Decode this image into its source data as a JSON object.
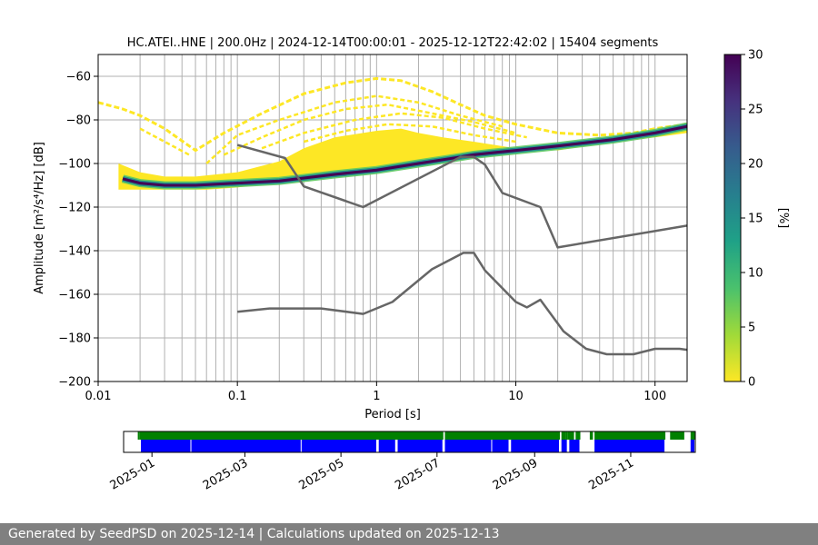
{
  "chart_data": [
    {
      "type": "heatmap",
      "title": "HC.ATEI..HNE | 200.0Hz | 2024-12-14T00:00:01 - 2025-12-12T22:42:02 | 15404 segments",
      "xlabel": "Period [s]",
      "ylabel": "Amplitude [m²/s⁴/Hz] [dB]",
      "xscale": "log",
      "xlim": [
        0.01,
        170
      ],
      "ylim": [
        -200,
        -50
      ],
      "xticks": [
        {
          "value": 0.01,
          "label": "0.01"
        },
        {
          "value": 0.1,
          "label": "0.1"
        },
        {
          "value": 1,
          "label": "1"
        },
        {
          "value": 10,
          "label": "10"
        },
        {
          "value": 100,
          "label": "100"
        }
      ],
      "yticks": [
        {
          "value": -60,
          "label": "−60"
        },
        {
          "value": -80,
          "label": "−80"
        },
        {
          "value": -100,
          "label": "−100"
        },
        {
          "value": -120,
          "label": "−120"
        },
        {
          "value": -140,
          "label": "−140"
        },
        {
          "value": -160,
          "label": "−160"
        },
        {
          "value": -180,
          "label": "−180"
        },
        {
          "value": -200,
          "label": "−200"
        }
      ],
      "grid": true,
      "colorbar": {
        "label": "[%]",
        "range": [
          0,
          30
        ],
        "ticks": [
          {
            "value": 0,
            "label": "0"
          },
          {
            "value": 5,
            "label": "5"
          },
          {
            "value": 10,
            "label": "10"
          },
          {
            "value": 15,
            "label": "15"
          },
          {
            "value": 20,
            "label": "20"
          },
          {
            "value": 25,
            "label": "25"
          },
          {
            "value": 30,
            "label": "30"
          }
        ],
        "colors": [
          "#fde725",
          "#a0da39",
          "#4ac16d",
          "#1fa187",
          "#277f8e",
          "#365c8d",
          "#46327e",
          "#440154"
        ]
      },
      "mode_curve": {
        "period": [
          0.015,
          0.02,
          0.03,
          0.05,
          0.1,
          0.2,
          0.5,
          1,
          2,
          4,
          5,
          7,
          10,
          20,
          50,
          100,
          170
        ],
        "db": [
          -107,
          -109,
          -110,
          -110,
          -109,
          -108,
          -105,
          -103,
          -100,
          -97,
          -96,
          -95,
          -94,
          -92,
          -89,
          -86,
          -83
        ]
      },
      "distribution": {
        "core_lower": [
          [
            0.014,
            -112
          ],
          [
            0.03,
            -112
          ],
          [
            0.06,
            -112
          ],
          [
            0.1,
            -111
          ],
          [
            0.3,
            -107
          ],
          [
            1,
            -103
          ],
          [
            3,
            -99
          ],
          [
            6,
            -96
          ],
          [
            10,
            -94
          ],
          [
            30,
            -91
          ],
          [
            100,
            -86
          ],
          [
            170,
            -84
          ]
        ],
        "core_upper": [
          [
            0.014,
            -100
          ],
          [
            0.02,
            -104
          ],
          [
            0.03,
            -106
          ],
          [
            0.05,
            -106
          ],
          [
            0.1,
            -104
          ],
          [
            0.2,
            -99
          ],
          [
            0.3,
            -93
          ],
          [
            0.5,
            -88
          ],
          [
            1,
            -85
          ],
          [
            1.5,
            -84
          ],
          [
            2,
            -86
          ],
          [
            3,
            -88
          ],
          [
            5,
            -90
          ],
          [
            10,
            -93
          ],
          [
            20,
            -94
          ],
          [
            50,
            -90
          ],
          [
            100,
            -88
          ],
          [
            170,
            -86
          ]
        ],
        "outer_upper": [
          [
            0.01,
            -72
          ],
          [
            0.015,
            -75
          ],
          [
            0.02,
            -78
          ],
          [
            0.03,
            -84
          ],
          [
            0.05,
            -94
          ],
          [
            0.08,
            -86
          ],
          [
            0.15,
            -77
          ],
          [
            0.3,
            -68
          ],
          [
            0.6,
            -63
          ],
          [
            1,
            -61
          ],
          [
            1.5,
            -62
          ],
          [
            2.5,
            -67
          ],
          [
            4,
            -73
          ],
          [
            6,
            -78
          ],
          [
            10,
            -82
          ],
          [
            20,
            -86
          ],
          [
            40,
            -87
          ],
          [
            70,
            -86
          ],
          [
            100,
            -84
          ],
          [
            170,
            -82
          ]
        ],
        "sparse_lines": [
          [
            [
              0.06,
              -100
            ],
            [
              0.1,
              -87
            ],
            [
              0.2,
              -80
            ],
            [
              0.5,
              -72
            ],
            [
              1,
              -69
            ],
            [
              2,
              -72
            ],
            [
              4,
              -78
            ],
            [
              8,
              -83
            ]
          ],
          [
            [
              0.08,
              -96
            ],
            [
              0.15,
              -88
            ],
            [
              0.3,
              -80
            ],
            [
              0.6,
              -75
            ],
            [
              1.2,
              -73
            ],
            [
              2.5,
              -77
            ],
            [
              5,
              -81
            ],
            [
              10,
              -86
            ]
          ],
          [
            [
              0.15,
              -93
            ],
            [
              0.3,
              -86
            ],
            [
              0.7,
              -80
            ],
            [
              1.5,
              -77
            ],
            [
              3,
              -79
            ],
            [
              6,
              -84
            ],
            [
              12,
              -88
            ]
          ],
          [
            [
              0.3,
              -90
            ],
            [
              0.6,
              -85
            ],
            [
              1.2,
              -82
            ],
            [
              2.5,
              -83
            ],
            [
              5,
              -87
            ],
            [
              10,
              -90
            ]
          ],
          [
            [
              0.02,
              -84
            ],
            [
              0.03,
              -90
            ],
            [
              0.045,
              -96
            ]
          ]
        ]
      },
      "reference_lines": [
        {
          "name": "upper",
          "period": [
            0.1,
            0.22,
            0.3,
            0.8,
            4,
            5,
            6,
            8,
            15,
            20,
            170
          ],
          "db": [
            -91.5,
            -97.5,
            -110.5,
            -120,
            -97,
            -97,
            -100.5,
            -113.5,
            -120,
            -138.5,
            -128.5
          ]
        },
        {
          "name": "lower",
          "period": [
            0.1,
            0.17,
            0.4,
            0.8,
            1.3,
            2.5,
            4.2,
            5,
            6,
            10,
            12,
            15,
            22,
            32,
            45,
            70,
            100,
            150,
            170
          ],
          "db": [
            -168,
            -166.5,
            -166.5,
            -169,
            -163.5,
            -148.5,
            -141,
            -141,
            -149,
            -163.5,
            -166,
            -162.5,
            -177,
            -185,
            -187.5,
            -187.5,
            -185,
            -185,
            -185.5
          ]
        }
      ]
    },
    {
      "type": "timeline",
      "x_range": [
        "2024-12-14",
        "2025-12-12"
      ],
      "ticks": [
        {
          "value": "2025-01-01",
          "label": "2025-01"
        },
        {
          "value": "2025-03-01",
          "label": "2025-03"
        },
        {
          "value": "2025-05-01",
          "label": "2025-05"
        },
        {
          "value": "2025-07-01",
          "label": "2025-07"
        },
        {
          "value": "2025-09-01",
          "label": "2025-09"
        },
        {
          "value": "2025-11-01",
          "label": "2025-11"
        }
      ],
      "data_color": "#0000ff",
      "coverage_color": "#008000",
      "coverage_intervals": [
        [
          "2024-12-23",
          "2024-12-24"
        ],
        [
          "2024-12-24",
          "2025-07-05"
        ],
        [
          "2025-07-06",
          "2025-09-17"
        ],
        [
          "2025-09-18",
          "2025-09-21"
        ],
        [
          "2025-09-21",
          "2025-09-22"
        ],
        [
          "2025-09-22",
          "2025-09-26"
        ],
        [
          "2025-09-27",
          "2025-09-30"
        ],
        [
          "2025-10-06",
          "2025-10-08"
        ],
        [
          "2025-10-09",
          "2025-11-23"
        ],
        [
          "2025-11-26",
          "2025-12-05"
        ],
        [
          "2025-12-09",
          "2025-12-12"
        ]
      ],
      "data_intervals": [
        [
          "2024-12-25",
          "2025-01-26"
        ],
        [
          "2025-01-26",
          "2025-04-06"
        ],
        [
          "2025-04-06",
          "2025-05-24"
        ],
        [
          "2025-05-25",
          "2025-06-05"
        ],
        [
          "2025-06-06",
          "2025-07-05"
        ],
        [
          "2025-07-06",
          "2025-08-05"
        ],
        [
          "2025-08-05",
          "2025-08-16"
        ],
        [
          "2025-08-17",
          "2025-09-17"
        ],
        [
          "2025-09-18",
          "2025-09-22"
        ],
        [
          "2025-09-23",
          "2025-09-30"
        ],
        [
          "2025-10-09",
          "2025-11-23"
        ],
        [
          "2025-12-09",
          "2025-12-12"
        ]
      ]
    }
  ],
  "footer": {
    "text": "Generated by SeedPSD on 2025-12-14 | Calculations updated on 2025-12-13"
  }
}
